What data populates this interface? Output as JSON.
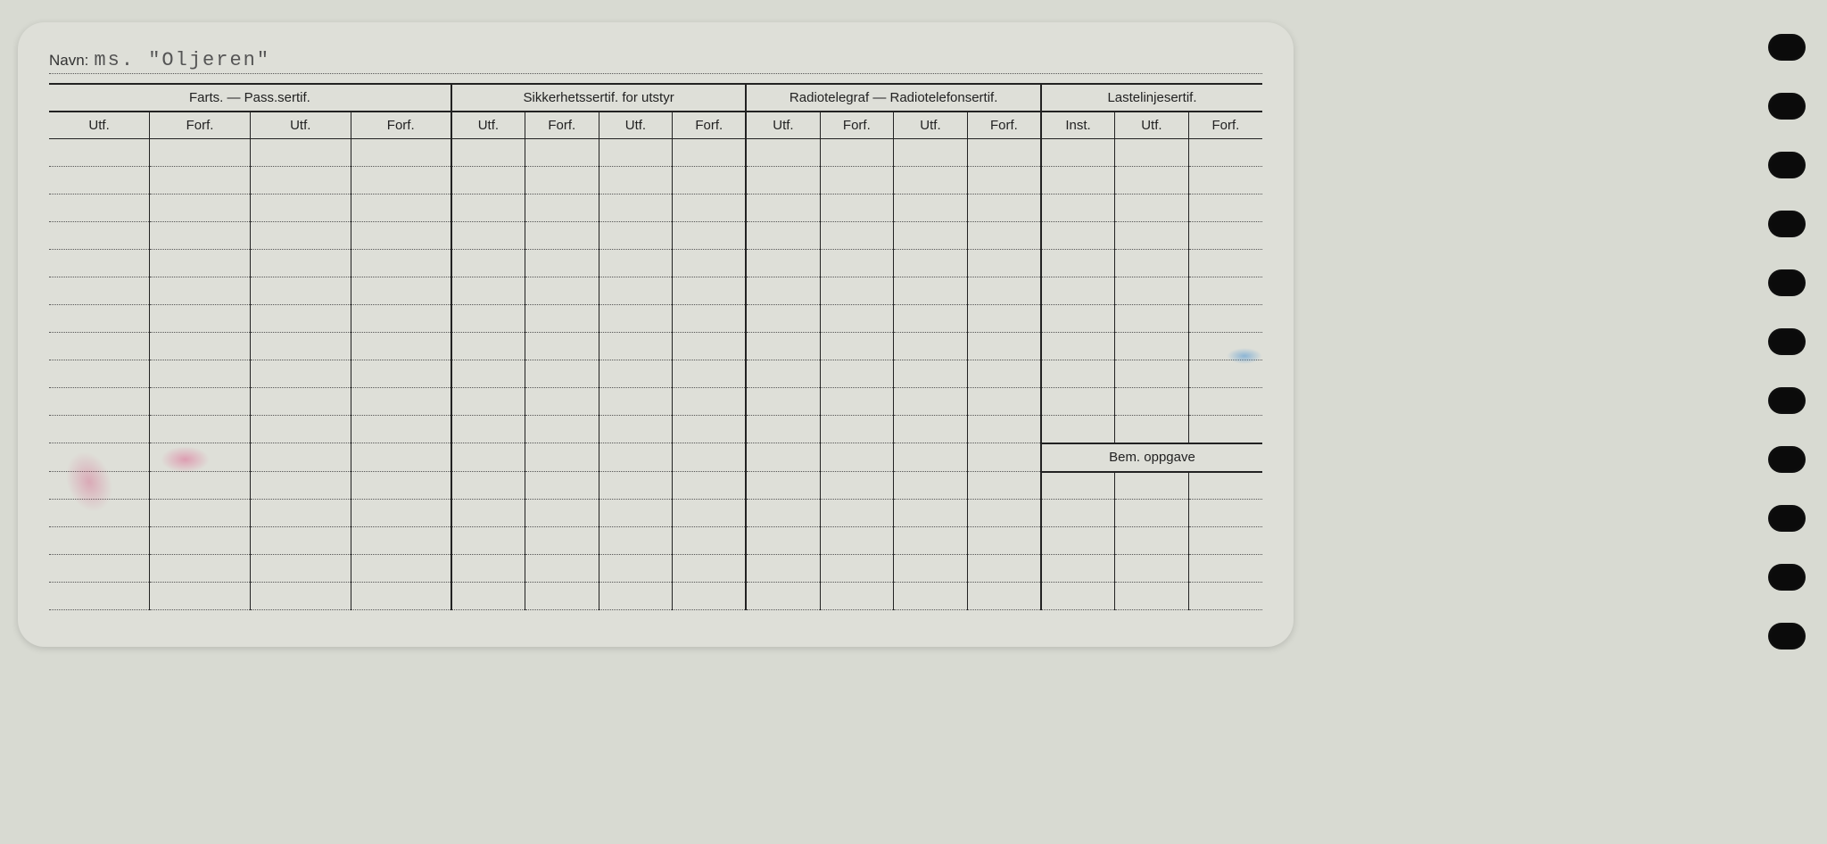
{
  "navn": {
    "label": "Navn:",
    "value": "ms. \"Oljeren\""
  },
  "groups": [
    {
      "title": "Farts. — Pass.sertif.",
      "cols": [
        "Utf.",
        "Forf.",
        "Utf.",
        "Forf."
      ]
    },
    {
      "title": "Sikkerhetssertif. for utstyr",
      "cols": [
        "Utf.",
        "Forf.",
        "Utf.",
        "Forf."
      ]
    },
    {
      "title": "Radiotelegraf — Radiotelefonsertif.",
      "cols": [
        "Utf.",
        "Forf.",
        "Utf.",
        "Forf."
      ]
    },
    {
      "title": "Lastelinjesertif.",
      "cols": [
        "Inst.",
        "Utf.",
        "Forf."
      ]
    }
  ],
  "bem_label": "Bem. oppgave",
  "row_count_before_bem": 11,
  "row_count_after_bem": 5,
  "colors": {
    "paper": "#dedfd8",
    "background": "#d8dad2",
    "ink": "#222222",
    "dotted": "#555555",
    "typed": "#555555"
  }
}
